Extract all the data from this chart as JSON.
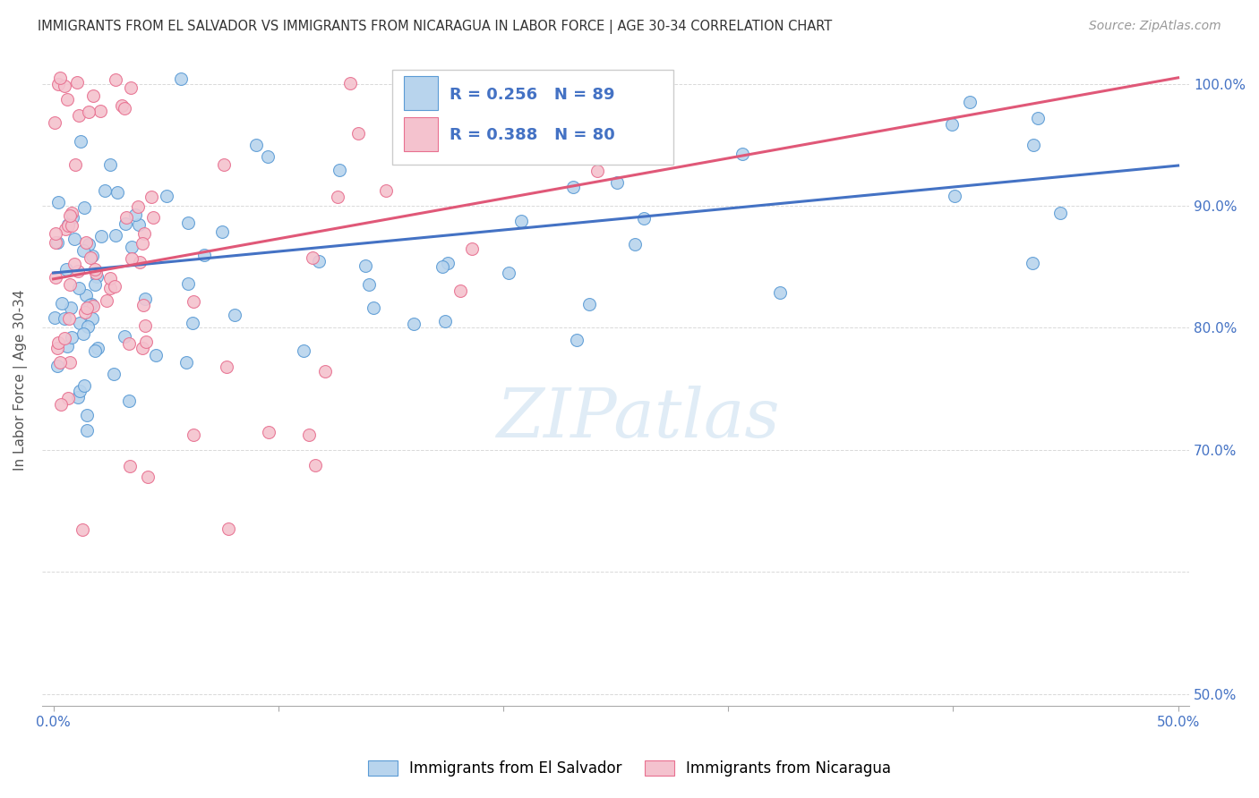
{
  "title": "IMMIGRANTS FROM EL SALVADOR VS IMMIGRANTS FROM NICARAGUA IN LABOR FORCE | AGE 30-34 CORRELATION CHART",
  "source": "Source: ZipAtlas.com",
  "ylabel": "In Labor Force | Age 30-34",
  "xlim": [
    -0.005,
    0.505
  ],
  "ylim": [
    0.49,
    1.025
  ],
  "xtick_positions": [
    0.0,
    0.1,
    0.2,
    0.3,
    0.4,
    0.5
  ],
  "ytick_positions": [
    0.5,
    0.6,
    0.7,
    0.8,
    0.9,
    1.0
  ],
  "right_ytick_labels": [
    "50.0%",
    "",
    "70.0%",
    "80.0%",
    "90.0%",
    "100.0%"
  ],
  "legend_labels": [
    "Immigrants from El Salvador",
    "Immigrants from Nicaragua"
  ],
  "blue_fill": "#b8d4ed",
  "blue_edge": "#5b9bd5",
  "pink_fill": "#f4c2ce",
  "pink_edge": "#e87090",
  "blue_line": "#4472c4",
  "pink_line": "#e05878",
  "R_blue": 0.256,
  "N_blue": 89,
  "R_pink": 0.388,
  "N_pink": 80,
  "watermark": "ZIPatlas",
  "tick_color": "#aaaaaa",
  "label_color": "#4472c4",
  "grid_color": "#d0d0d0"
}
